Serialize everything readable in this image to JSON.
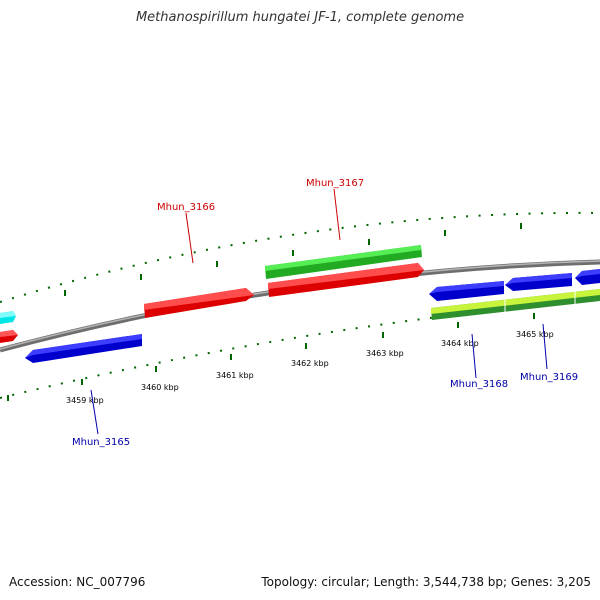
{
  "title": "Methanospirillum hungatei JF-1, complete genome",
  "footer": {
    "accession": "Accession: NC_007796",
    "summary": "Topology: circular; Length: 3,544,738 bp; Genes: 3,205"
  },
  "colors": {
    "forward_label": "#cc0000",
    "reverse_label": "#0000aa",
    "backbone": "#808080",
    "tick": "#006600"
  },
  "map_data": {
    "visible_range_kbp": [
      3458,
      3466
    ],
    "scale_labels": [
      "3459 kbp",
      "3460 kbp",
      "3461 kbp",
      "3462 kbp",
      "3463 kbp",
      "3464 kbp",
      "3465 kbp"
    ],
    "genes": [
      {
        "label": "",
        "track": "forward",
        "color": "#ff0000",
        "start_kbp": 3458.0,
        "end_kbp": 3458.15,
        "strand": "+"
      },
      {
        "label": "",
        "track": "forward-outer",
        "color": "#00ffff",
        "start_kbp": 3458.0,
        "end_kbp": 3458.25,
        "strand": "+"
      },
      {
        "label": "Mhun_3165",
        "track": "reverse",
        "color": "#0000ee",
        "start_kbp": 3458.33,
        "end_kbp": 3459.85,
        "strand": "-"
      },
      {
        "label": "Mhun_3166",
        "track": "forward",
        "color": "#ff0000",
        "start_kbp": 3459.87,
        "end_kbp": 3461.33,
        "strand": "+"
      },
      {
        "label": "Mhun_3167",
        "track": "forward",
        "color": "#ff0000",
        "start_kbp": 3461.5,
        "end_kbp": 3463.55,
        "strand": "+"
      },
      {
        "label": "",
        "track": "forward-rna",
        "color": "#33cc33",
        "start_kbp": 3461.5,
        "end_kbp": 3463.55,
        "strand": "+"
      },
      {
        "label": "Mhun_3168",
        "track": "reverse",
        "color": "#0000ee",
        "start_kbp": 3463.75,
        "end_kbp": 3464.68,
        "strand": "-"
      },
      {
        "label": "Mhun_3169",
        "track": "reverse",
        "color": "#0000ee",
        "start_kbp": 3464.7,
        "end_kbp": 3465.6,
        "strand": "-"
      },
      {
        "label": "",
        "track": "reverse",
        "color": "#0000ee",
        "start_kbp": 3465.65,
        "end_kbp": 3466.0,
        "strand": "-"
      },
      {
        "label": "",
        "track": "reverse-inner",
        "color": "#88dd22",
        "start_kbp": 3463.75,
        "end_kbp": 3466.0,
        "strand": "-"
      }
    ]
  }
}
